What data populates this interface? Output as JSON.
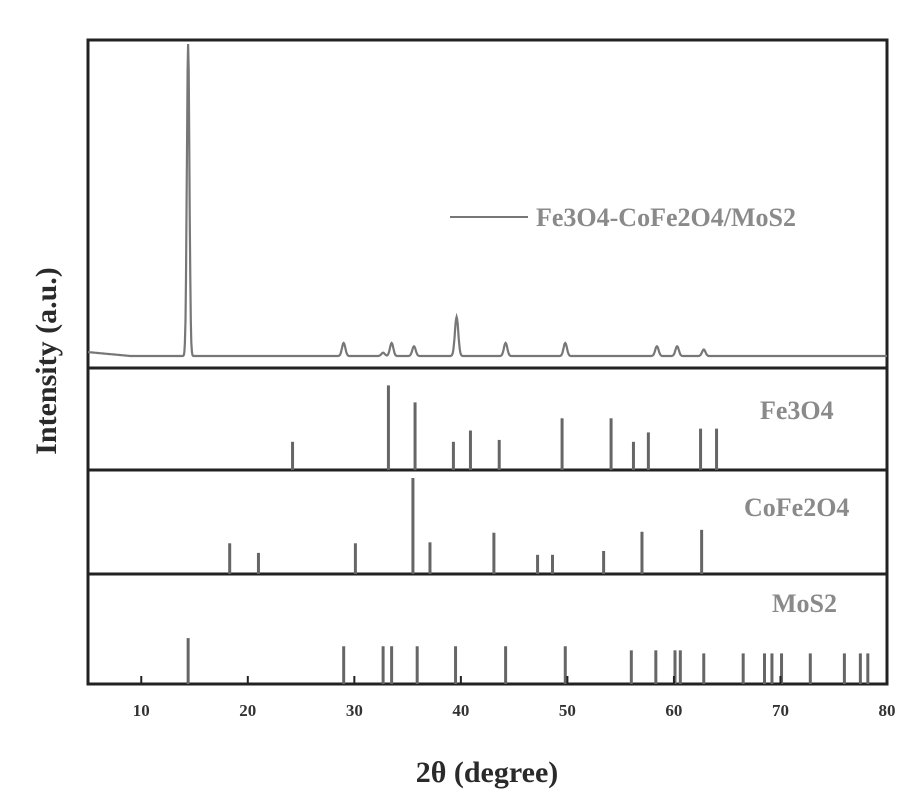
{
  "chart_data": {
    "type": "line",
    "xlabel": "2θ (degree)",
    "ylabel": "Intensity (a.u.)",
    "xlim": [
      5,
      80
    ],
    "x_ticks": [
      10,
      20,
      30,
      40,
      50,
      60,
      70,
      80
    ],
    "x_tick_labels": [
      "10",
      "20",
      "30",
      "40",
      "50",
      "60",
      "70",
      "80"
    ],
    "grid": false,
    "layout": "stacked-panels",
    "legend": {
      "position": "top-right",
      "entries": [
        "Fe3O4-CoFe2O4/MoS2"
      ]
    },
    "series": [
      {
        "name": "Fe3O4-CoFe2O4/MoS2",
        "style": "line",
        "color": "#777777",
        "baseline": 0.04,
        "peaks": [
          {
            "x": 14.4,
            "y": 1.0
          },
          {
            "x": 29.0,
            "y": 0.04
          },
          {
            "x": 32.7,
            "y": 0.05
          },
          {
            "x": 33.5,
            "y": 0.04
          },
          {
            "x": 35.6,
            "y": 0.03
          },
          {
            "x": 39.6,
            "y": 0.16
          },
          {
            "x": 44.2,
            "y": 0.08
          },
          {
            "x": 49.8,
            "y": 0.08
          },
          {
            "x": 58.4,
            "y": 0.03
          },
          {
            "x": 60.3,
            "y": 0.07
          },
          {
            "x": 62.8,
            "y": 0.02
          }
        ]
      },
      {
        "name": "Fe3O4",
        "style": "stick",
        "color": "#666666",
        "peaks": [
          {
            "x": 24.2,
            "y": 0.3
          },
          {
            "x": 33.2,
            "y": 0.9
          },
          {
            "x": 35.7,
            "y": 0.72
          },
          {
            "x": 39.3,
            "y": 0.3
          },
          {
            "x": 40.9,
            "y": 0.42
          },
          {
            "x": 43.6,
            "y": 0.32
          },
          {
            "x": 49.5,
            "y": 0.55
          },
          {
            "x": 54.1,
            "y": 0.55
          },
          {
            "x": 56.2,
            "y": 0.3
          },
          {
            "x": 57.6,
            "y": 0.4
          },
          {
            "x": 62.5,
            "y": 0.44
          },
          {
            "x": 64.0,
            "y": 0.44
          }
        ]
      },
      {
        "name": "CoFe2O4",
        "style": "stick",
        "color": "#666666",
        "peaks": [
          {
            "x": 18.3,
            "y": 0.32
          },
          {
            "x": 21.0,
            "y": 0.22
          },
          {
            "x": 30.1,
            "y": 0.32
          },
          {
            "x": 35.5,
            "y": 1.0
          },
          {
            "x": 37.1,
            "y": 0.33
          },
          {
            "x": 43.1,
            "y": 0.43
          },
          {
            "x": 47.2,
            "y": 0.2
          },
          {
            "x": 48.6,
            "y": 0.2
          },
          {
            "x": 53.4,
            "y": 0.24
          },
          {
            "x": 57.0,
            "y": 0.44
          },
          {
            "x": 62.6,
            "y": 0.46
          }
        ]
      },
      {
        "name": "MoS2",
        "style": "stick",
        "color": "#666666",
        "peaks": [
          {
            "x": 14.4,
            "y": 0.45
          },
          {
            "x": 29.0,
            "y": 0.37
          },
          {
            "x": 32.7,
            "y": 0.37
          },
          {
            "x": 33.5,
            "y": 0.37
          },
          {
            "x": 35.9,
            "y": 0.37
          },
          {
            "x": 39.5,
            "y": 0.37
          },
          {
            "x": 44.2,
            "y": 0.37
          },
          {
            "x": 49.8,
            "y": 0.37
          },
          {
            "x": 56.0,
            "y": 0.33
          },
          {
            "x": 58.3,
            "y": 0.33
          },
          {
            "x": 60.1,
            "y": 0.33
          },
          {
            "x": 60.6,
            "y": 0.33
          },
          {
            "x": 62.8,
            "y": 0.3
          },
          {
            "x": 66.5,
            "y": 0.3
          },
          {
            "x": 68.5,
            "y": 0.3
          },
          {
            "x": 69.2,
            "y": 0.3
          },
          {
            "x": 70.1,
            "y": 0.3
          },
          {
            "x": 72.8,
            "y": 0.3
          },
          {
            "x": 76.0,
            "y": 0.3
          },
          {
            "x": 77.5,
            "y": 0.3
          },
          {
            "x": 78.2,
            "y": 0.3
          }
        ]
      }
    ]
  }
}
